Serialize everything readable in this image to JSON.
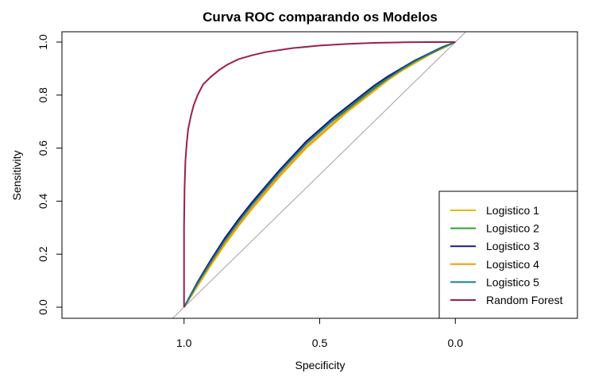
{
  "chart_data": {
    "type": "line",
    "title": "Curva ROC comparando os  Modelos",
    "xlabel": "Specificity",
    "ylabel": "Sensitivity",
    "xlim": [
      1.45,
      -0.45
    ],
    "ylim": [
      0,
      1
    ],
    "x_ticks": [
      1.0,
      0.5,
      0.0
    ],
    "x_tick_labels": [
      "1.0",
      "0.5",
      "0.0"
    ],
    "y_ticks": [
      0.0,
      0.2,
      0.4,
      0.6,
      0.8,
      1.0
    ],
    "y_tick_labels": [
      "0.0",
      "0.2",
      "0.4",
      "0.6",
      "0.8",
      "1.0"
    ],
    "legend_position": "bottom-right",
    "grid": false,
    "reference_line": {
      "color": "#a0a0a0",
      "from": [
        1,
        0
      ],
      "to": [
        0,
        1
      ]
    },
    "series": [
      {
        "name": "Logistico 1",
        "color": "#e6b800",
        "points": [
          [
            1.0,
            0.0
          ],
          [
            0.95,
            0.08
          ],
          [
            0.9,
            0.16
          ],
          [
            0.85,
            0.235
          ],
          [
            0.8,
            0.305
          ],
          [
            0.75,
            0.37
          ],
          [
            0.7,
            0.43
          ],
          [
            0.65,
            0.49
          ],
          [
            0.6,
            0.545
          ],
          [
            0.55,
            0.6
          ],
          [
            0.5,
            0.645
          ],
          [
            0.45,
            0.69
          ],
          [
            0.4,
            0.735
          ],
          [
            0.35,
            0.775
          ],
          [
            0.3,
            0.815
          ],
          [
            0.25,
            0.855
          ],
          [
            0.2,
            0.89
          ],
          [
            0.15,
            0.92
          ],
          [
            0.1,
            0.95
          ],
          [
            0.05,
            0.975
          ],
          [
            0.0,
            1.0
          ]
        ]
      },
      {
        "name": "Logistico 2",
        "color": "#33a02c",
        "points": [
          [
            1.0,
            0.0
          ],
          [
            0.95,
            0.09
          ],
          [
            0.9,
            0.175
          ],
          [
            0.85,
            0.255
          ],
          [
            0.8,
            0.325
          ],
          [
            0.75,
            0.39
          ],
          [
            0.7,
            0.45
          ],
          [
            0.65,
            0.51
          ],
          [
            0.6,
            0.565
          ],
          [
            0.55,
            0.62
          ],
          [
            0.5,
            0.665
          ],
          [
            0.45,
            0.71
          ],
          [
            0.4,
            0.75
          ],
          [
            0.35,
            0.79
          ],
          [
            0.3,
            0.83
          ],
          [
            0.25,
            0.865
          ],
          [
            0.2,
            0.9
          ],
          [
            0.15,
            0.93
          ],
          [
            0.1,
            0.955
          ],
          [
            0.05,
            0.98
          ],
          [
            0.0,
            1.0
          ]
        ]
      },
      {
        "name": "Logistico 3",
        "color": "#1a1a80",
        "points": [
          [
            1.0,
            0.0
          ],
          [
            0.95,
            0.095
          ],
          [
            0.9,
            0.18
          ],
          [
            0.85,
            0.26
          ],
          [
            0.8,
            0.33
          ],
          [
            0.75,
            0.395
          ],
          [
            0.7,
            0.455
          ],
          [
            0.65,
            0.515
          ],
          [
            0.6,
            0.57
          ],
          [
            0.55,
            0.625
          ],
          [
            0.5,
            0.67
          ],
          [
            0.45,
            0.715
          ],
          [
            0.4,
            0.755
          ],
          [
            0.35,
            0.795
          ],
          [
            0.3,
            0.835
          ],
          [
            0.25,
            0.87
          ],
          [
            0.2,
            0.9
          ],
          [
            0.15,
            0.93
          ],
          [
            0.1,
            0.955
          ],
          [
            0.05,
            0.98
          ],
          [
            0.0,
            1.0
          ]
        ]
      },
      {
        "name": "Logistico 4",
        "color": "#f59a00",
        "points": [
          [
            1.0,
            0.0
          ],
          [
            0.95,
            0.085
          ],
          [
            0.9,
            0.165
          ],
          [
            0.85,
            0.24
          ],
          [
            0.8,
            0.31
          ],
          [
            0.75,
            0.375
          ],
          [
            0.7,
            0.435
          ],
          [
            0.65,
            0.495
          ],
          [
            0.6,
            0.55
          ],
          [
            0.55,
            0.605
          ],
          [
            0.5,
            0.65
          ],
          [
            0.45,
            0.695
          ],
          [
            0.4,
            0.74
          ],
          [
            0.35,
            0.78
          ],
          [
            0.3,
            0.82
          ],
          [
            0.25,
            0.86
          ],
          [
            0.2,
            0.895
          ],
          [
            0.15,
            0.925
          ],
          [
            0.1,
            0.952
          ],
          [
            0.05,
            0.977
          ],
          [
            0.0,
            1.0
          ]
        ]
      },
      {
        "name": "Logistico 5",
        "color": "#1a7f8c",
        "points": [
          [
            1.0,
            0.0
          ],
          [
            0.95,
            0.09
          ],
          [
            0.9,
            0.172
          ],
          [
            0.85,
            0.25
          ],
          [
            0.8,
            0.32
          ],
          [
            0.75,
            0.385
          ],
          [
            0.7,
            0.445
          ],
          [
            0.65,
            0.505
          ],
          [
            0.6,
            0.56
          ],
          [
            0.55,
            0.615
          ],
          [
            0.5,
            0.66
          ],
          [
            0.45,
            0.705
          ],
          [
            0.4,
            0.745
          ],
          [
            0.35,
            0.785
          ],
          [
            0.3,
            0.825
          ],
          [
            0.25,
            0.862
          ],
          [
            0.2,
            0.896
          ],
          [
            0.15,
            0.927
          ],
          [
            0.1,
            0.953
          ],
          [
            0.05,
            0.978
          ],
          [
            0.0,
            1.0
          ]
        ]
      },
      {
        "name": "Random Forest",
        "color": "#9b1f4a",
        "points": [
          [
            1.0,
            0.0
          ],
          [
            1.0,
            0.3
          ],
          [
            0.998,
            0.45
          ],
          [
            0.995,
            0.55
          ],
          [
            0.99,
            0.62
          ],
          [
            0.985,
            0.67
          ],
          [
            0.975,
            0.72
          ],
          [
            0.965,
            0.76
          ],
          [
            0.95,
            0.8
          ],
          [
            0.93,
            0.84
          ],
          [
            0.9,
            0.87
          ],
          [
            0.87,
            0.895
          ],
          [
            0.84,
            0.915
          ],
          [
            0.8,
            0.935
          ],
          [
            0.75,
            0.95
          ],
          [
            0.7,
            0.962
          ],
          [
            0.6,
            0.977
          ],
          [
            0.5,
            0.987
          ],
          [
            0.4,
            0.993
          ],
          [
            0.3,
            0.997
          ],
          [
            0.2,
            0.999
          ],
          [
            0.1,
            1.0
          ],
          [
            0.0,
            1.0
          ]
        ]
      }
    ]
  }
}
